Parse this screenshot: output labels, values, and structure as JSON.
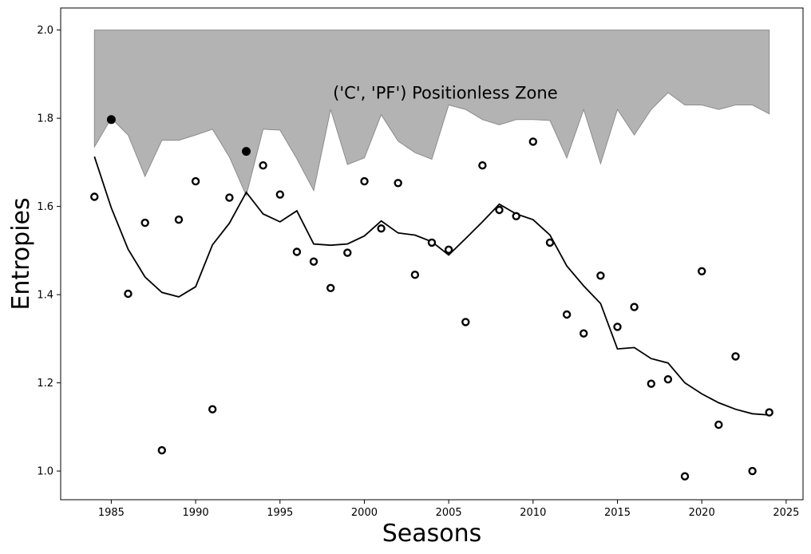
{
  "chart_data": {
    "type": "scatter",
    "xlabel": "Seasons",
    "ylabel": "Entropies",
    "xlim": [
      1982,
      2026
    ],
    "ylim": [
      0.935,
      2.05
    ],
    "xticks": [
      1985,
      1990,
      1995,
      2000,
      2005,
      2010,
      2015,
      2020,
      2025
    ],
    "yticks": [
      1.0,
      1.2,
      1.4,
      1.6,
      1.8,
      2.0
    ],
    "grid": false,
    "annotation": "('C', 'PF') Positionless Zone",
    "zone": {
      "x": [
        1984,
        1985,
        1986,
        1987,
        1988,
        1989,
        1990,
        1991,
        1992,
        1993,
        1994,
        1995,
        1996,
        1997,
        1998,
        1999,
        2000,
        2001,
        2002,
        2003,
        2004,
        2005,
        2006,
        2007,
        2008,
        2009,
        2010,
        2011,
        2012,
        2013,
        2014,
        2015,
        2016,
        2017,
        2018,
        2019,
        2020,
        2021,
        2022,
        2023,
        2024
      ],
      "lower": [
        1.735,
        1.8,
        1.762,
        1.668,
        1.75,
        1.75,
        1.762,
        1.775,
        1.712,
        1.625,
        1.775,
        1.773,
        1.708,
        1.636,
        1.82,
        1.695,
        1.71,
        1.808,
        1.748,
        1.722,
        1.707,
        1.83,
        1.82,
        1.797,
        1.785,
        1.797,
        1.797,
        1.795,
        1.71,
        1.82,
        1.697,
        1.82,
        1.762,
        1.82,
        1.858,
        1.83,
        1.83,
        1.82,
        1.83,
        1.83,
        1.81
      ],
      "upper": 2.0
    },
    "points_x": [
      1984,
      1985,
      1986,
      1987,
      1988,
      1989,
      1990,
      1991,
      1992,
      1993,
      1994,
      1995,
      1996,
      1997,
      1998,
      1999,
      2000,
      2001,
      2002,
      2003,
      2004,
      2005,
      2006,
      2007,
      2008,
      2009,
      2010,
      2011,
      2012,
      2013,
      2014,
      2015,
      2016,
      2017,
      2018,
      2019,
      2020,
      2021,
      2022,
      2023,
      2024
    ],
    "points_y": [
      1.622,
      1.797,
      1.402,
      1.563,
      1.047,
      1.57,
      1.657,
      1.14,
      1.62,
      1.725,
      1.693,
      1.627,
      1.497,
      1.475,
      1.415,
      1.495,
      1.657,
      1.55,
      1.653,
      1.445,
      1.518,
      1.502,
      1.338,
      1.693,
      1.592,
      1.578,
      1.747,
      1.518,
      1.355,
      1.312,
      1.443,
      1.327,
      1.372,
      1.198,
      1.208,
      0.988,
      1.453,
      1.105,
      1.26,
      1.0,
      1.133
    ],
    "points_filled": [
      false,
      true,
      false,
      false,
      false,
      false,
      false,
      false,
      false,
      true,
      false,
      false,
      false,
      false,
      false,
      false,
      false,
      false,
      false,
      false,
      false,
      false,
      false,
      false,
      false,
      false,
      false,
      false,
      false,
      false,
      false,
      false,
      false,
      false,
      false,
      false,
      false,
      false,
      false,
      false,
      false
    ],
    "trend_y": [
      1.713,
      1.597,
      1.503,
      1.44,
      1.405,
      1.395,
      1.418,
      1.513,
      1.562,
      1.632,
      1.583,
      1.565,
      1.59,
      1.515,
      1.512,
      1.515,
      1.533,
      1.567,
      1.54,
      1.535,
      1.52,
      1.49,
      1.527,
      1.565,
      1.605,
      1.583,
      1.57,
      1.535,
      1.465,
      1.42,
      1.38,
      1.277,
      1.28,
      1.255,
      1.245,
      1.2,
      1.175,
      1.155,
      1.14,
      1.13,
      1.127
    ],
    "colors": {
      "zone_fill": "#b3b3b3",
      "zone_edge": "#8c8c8c",
      "line": "#000000",
      "marker_edge": "#000000",
      "marker_hollow": "#ffffff",
      "marker_filled": "#000000"
    }
  }
}
